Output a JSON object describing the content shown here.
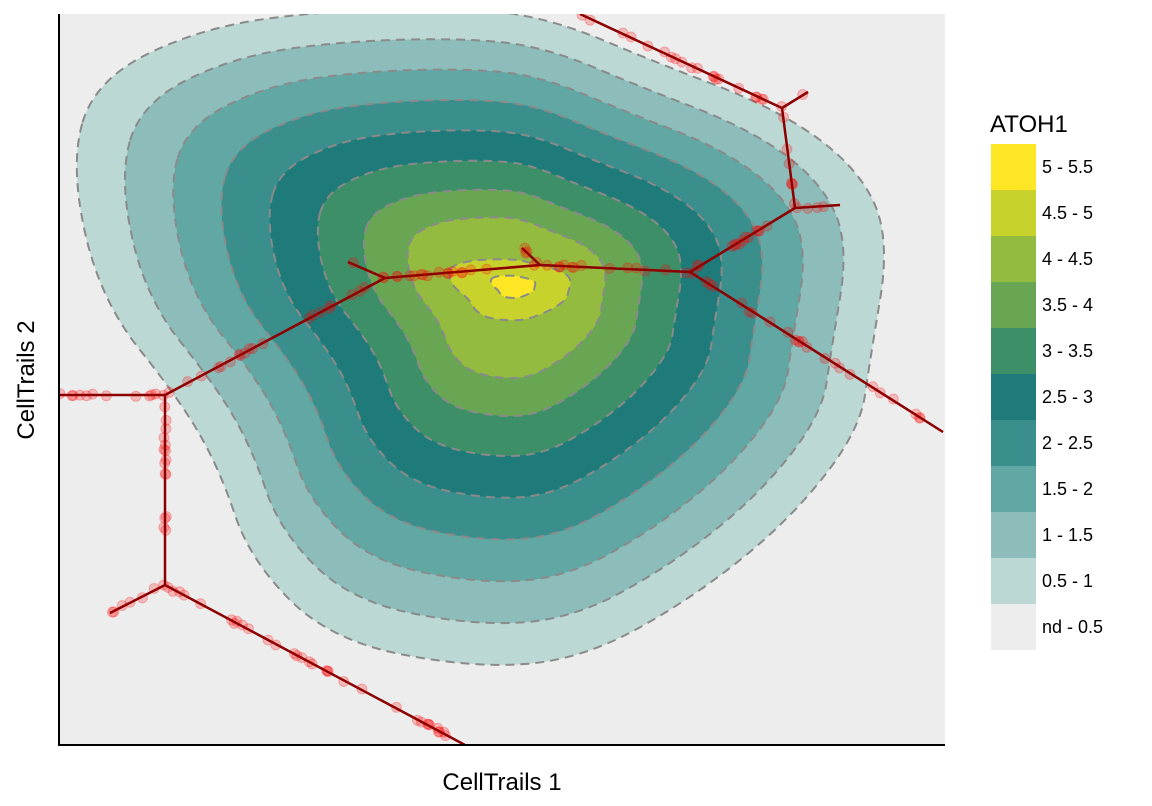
{
  "chart_data": {
    "type": "contour",
    "xlabel": "CellTrails 1",
    "ylabel": "CellTrails 2",
    "grid": false,
    "legend": {
      "title": "ATOH1",
      "placement": "right",
      "entries": [
        {
          "label": "5 - 5.5",
          "color": "#FDE725"
        },
        {
          "label": "4.5 - 5",
          "color": "#C8D22D"
        },
        {
          "label": "4 - 4.5",
          "color": "#93BB40"
        },
        {
          "label": "3.5 - 4",
          "color": "#69A653"
        },
        {
          "label": "3 - 3.5",
          "color": "#3D8F68"
        },
        {
          "label": "2.5 - 3",
          "color": "#1F7B79"
        },
        {
          "label": "2 - 2.5",
          "color": "#3A8E8C"
        },
        {
          "label": "1.5 - 2",
          "color": "#61A8A4"
        },
        {
          "label": "1 - 1.5",
          "color": "#8CBDBA"
        },
        {
          "label": "0.5 - 1",
          "color": "#BCD8D5"
        },
        {
          "label": "nd - 0.5",
          "color": "#EDEDED"
        }
      ]
    },
    "trail_color": "#8B0000",
    "point_color": "#FF0000"
  }
}
